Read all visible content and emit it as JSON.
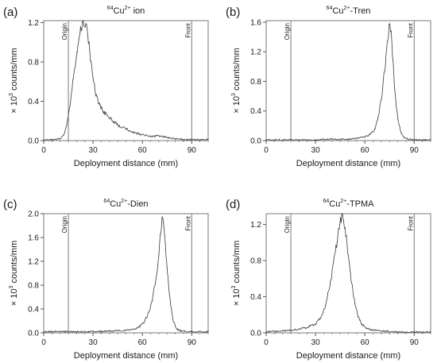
{
  "chart_data": [
    {
      "type": "line",
      "panel_label": "(a)",
      "title_prefix": "64",
      "title_main": "Cu",
      "title_charge": "2+",
      "title_suffix": " ion",
      "xlabel": "Deployment distance (mm)",
      "ylabel_prefix": "× 10",
      "ylabel_exp": "3",
      "ylabel_suffix": " counts/mm",
      "xlim": [
        0,
        100
      ],
      "ylim": [
        0,
        1.22
      ],
      "xticks": [
        0,
        30,
        60,
        90
      ],
      "xtick_labels": [
        "0",
        "30",
        "60",
        "90"
      ],
      "yticks": [
        0,
        0.4,
        0.8,
        1.2
      ],
      "ytick_labels": [
        "0.0",
        "0.4",
        "0.8",
        "1.2"
      ],
      "markers": [
        {
          "x": 15,
          "label": "Origin"
        },
        {
          "x": 90,
          "label": "Front"
        }
      ],
      "series": [
        {
          "x": [
            0,
            5,
            10,
            12,
            14,
            16,
            18,
            20,
            22,
            24,
            25,
            26,
            27,
            28,
            30,
            32,
            34,
            36,
            40,
            45,
            50,
            55,
            60,
            65,
            70,
            75,
            80,
            85,
            90,
            95,
            100
          ],
          "y": [
            0.01,
            0.01,
            0.02,
            0.05,
            0.15,
            0.35,
            0.62,
            0.9,
            1.1,
            1.2,
            1.22,
            1.18,
            1.05,
            0.9,
            0.62,
            0.45,
            0.36,
            0.3,
            0.23,
            0.16,
            0.12,
            0.08,
            0.06,
            0.04,
            0.05,
            0.03,
            0.02,
            0.01,
            0.01,
            0.01,
            0.01
          ]
        }
      ]
    },
    {
      "type": "line",
      "panel_label": "(b)",
      "title_prefix": "64",
      "title_main": "Cu",
      "title_charge": "2+",
      "title_suffix": "-Tren",
      "xlabel": "Deployment distance (mm)",
      "ylabel_prefix": "× 10",
      "ylabel_exp": "3",
      "ylabel_suffix": " counts/mm",
      "xlim": [
        0,
        100
      ],
      "ylim": [
        0,
        1.62
      ],
      "xticks": [
        0,
        30,
        60,
        90
      ],
      "xtick_labels": [
        "0",
        "30",
        "60",
        "90"
      ],
      "yticks": [
        0,
        0.4,
        0.8,
        1.2,
        1.6
      ],
      "ytick_labels": [
        "0.0",
        "0.4",
        "0.8",
        "1.2",
        "1.6"
      ],
      "markers": [
        {
          "x": 15,
          "label": "Origin"
        },
        {
          "x": 90,
          "label": "Front"
        }
      ],
      "series": [
        {
          "x": [
            0,
            10,
            20,
            30,
            40,
            50,
            55,
            60,
            63,
            66,
            68,
            70,
            72,
            74,
            75,
            76,
            77,
            78,
            80,
            82,
            84,
            86,
            90,
            95,
            100
          ],
          "y": [
            0.01,
            0.01,
            0.01,
            0.01,
            0.02,
            0.02,
            0.03,
            0.05,
            0.08,
            0.15,
            0.3,
            0.55,
            0.95,
            1.35,
            1.58,
            1.48,
            1.1,
            0.7,
            0.3,
            0.1,
            0.04,
            0.02,
            0.01,
            0.01,
            0.01
          ]
        }
      ]
    },
    {
      "type": "line",
      "panel_label": "(c)",
      "title_prefix": "64",
      "title_main": "Cu",
      "title_charge": "2+",
      "title_suffix": "-Dien",
      "xlabel": "Deployment distance (mm)",
      "ylabel_prefix": "× 10",
      "ylabel_exp": "3",
      "ylabel_suffix": " counts/mm",
      "xlim": [
        0,
        100
      ],
      "ylim": [
        0,
        2.0
      ],
      "xticks": [
        0,
        30,
        60,
        90
      ],
      "xtick_labels": [
        "0",
        "30",
        "60",
        "90"
      ],
      "yticks": [
        0,
        0.4,
        0.8,
        1.2,
        1.6,
        2.0
      ],
      "ytick_labels": [
        "0.0",
        "0.4",
        "0.8",
        "1.2",
        "1.6",
        "2.0"
      ],
      "markers": [
        {
          "x": 15,
          "label": "Origin"
        },
        {
          "x": 90,
          "label": "Front"
        }
      ],
      "series": [
        {
          "x": [
            0,
            10,
            20,
            30,
            40,
            50,
            55,
            58,
            61,
            64,
            66,
            68,
            70,
            71,
            72,
            73,
            74,
            75,
            77,
            79,
            81,
            84,
            90,
            100
          ],
          "y": [
            0.02,
            0.02,
            0.02,
            0.02,
            0.03,
            0.04,
            0.06,
            0.1,
            0.18,
            0.35,
            0.55,
            0.85,
            1.3,
            1.65,
            1.95,
            1.85,
            1.5,
            1.1,
            0.5,
            0.18,
            0.06,
            0.03,
            0.02,
            0.02
          ]
        }
      ]
    },
    {
      "type": "line",
      "panel_label": "(d)",
      "title_prefix": "64",
      "title_main": "Cu",
      "title_charge": "2+",
      "title_suffix": "-TPMA",
      "xlabel": "Deployment distance (mm)",
      "ylabel_prefix": "× 10",
      "ylabel_exp": "3",
      "ylabel_suffix": " counts/mm",
      "xlim": [
        0,
        100
      ],
      "ylim": [
        0,
        1.32
      ],
      "xticks": [
        0,
        30,
        60,
        90
      ],
      "xtick_labels": [
        "0",
        "30",
        "60",
        "90"
      ],
      "yticks": [
        0,
        0.4,
        0.8,
        1.2
      ],
      "ytick_labels": [
        "0.0",
        "0.4",
        "0.8",
        "1.2"
      ],
      "markers": [
        {
          "x": 15,
          "label": "Origin"
        },
        {
          "x": 90,
          "label": "Front"
        }
      ],
      "series": [
        {
          "x": [
            0,
            10,
            15,
            20,
            25,
            30,
            33,
            36,
            39,
            41,
            43,
            45,
            46,
            47,
            48,
            50,
            52,
            54,
            56,
            58,
            61,
            65,
            70,
            80,
            90,
            100
          ],
          "y": [
            0.01,
            0.02,
            0.03,
            0.04,
            0.06,
            0.1,
            0.16,
            0.3,
            0.55,
            0.8,
            1.0,
            1.22,
            1.3,
            1.25,
            1.15,
            0.85,
            0.55,
            0.32,
            0.18,
            0.1,
            0.05,
            0.03,
            0.02,
            0.01,
            0.01,
            0.01
          ]
        }
      ]
    }
  ]
}
